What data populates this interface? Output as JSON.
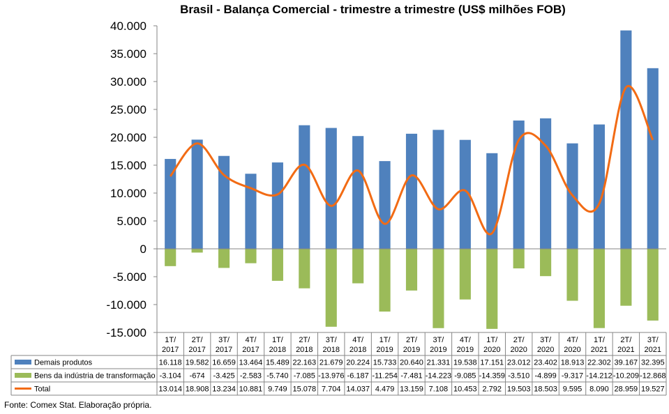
{
  "chart_data": {
    "type": "bar",
    "title": "Brasil - Balança Comercial - trimestre a trimestre (US$ milhões FOB)",
    "ylim": [
      -15000,
      40000
    ],
    "yticks": [
      "40.000",
      "35.000",
      "30.000",
      "25.000",
      "20.000",
      "15.000",
      "10.000",
      "5.000",
      "0",
      "-5.000",
      "-10.000",
      "-15.000"
    ],
    "categories": [
      "1T/ 2017",
      "2T/ 2017",
      "3T/ 2017",
      "4T/ 2017",
      "1T/ 2018",
      "2T/ 2018",
      "3T/ 2018",
      "4T/ 2018",
      "1T/ 2019",
      "2T/ 2019",
      "3T/ 2019",
      "4T/ 2019",
      "1T/ 2020",
      "2T/ 2020",
      "3T/ 2020",
      "4T/ 2020",
      "1T/ 2021",
      "2T/ 2021",
      "3T/ 2021"
    ],
    "grid": false,
    "legend": "data-table",
    "series": [
      {
        "name": "Demais produtos",
        "kind": "bar",
        "color": "#4F81BD",
        "values": [
          16118,
          19582,
          16659,
          13464,
          15489,
          22163,
          21679,
          20224,
          15733,
          20640,
          21331,
          19538,
          17151,
          23012,
          23402,
          18913,
          22302,
          39167,
          32395
        ],
        "labels": [
          "16.118",
          "19.582",
          "16.659",
          "13.464",
          "15.489",
          "22.163",
          "21.679",
          "20.224",
          "15.733",
          "20.640",
          "21.331",
          "19.538",
          "17.151",
          "23.012",
          "23.402",
          "18.913",
          "22.302",
          "39.167",
          "32.395"
        ]
      },
      {
        "name": "Bens da indústria de transformação",
        "kind": "bar",
        "color": "#9BBB59",
        "values": [
          -3104,
          -674,
          -3425,
          -2583,
          -5740,
          -7085,
          -13976,
          -6187,
          -11254,
          -7481,
          -14223,
          -9085,
          -14359,
          -3510,
          -4899,
          -9317,
          -14212,
          -10209,
          -12868
        ],
        "labels": [
          "-3.104",
          "-674",
          "-3.425",
          "-2.583",
          "-5.740",
          "-7.085",
          "-13.976",
          "-6.187",
          "-11.254",
          "-7.481",
          "-14.223",
          "-9.085",
          "-14.359",
          "-3.510",
          "-4.899",
          "-9.317",
          "-14.212",
          "-10.209",
          "-12.868"
        ]
      },
      {
        "name": "Total",
        "kind": "line",
        "color": "#F26B14",
        "values": [
          13014,
          18908,
          13234,
          10881,
          9749,
          15078,
          7704,
          14037,
          4479,
          13159,
          7108,
          10453,
          2792,
          19503,
          18503,
          9595,
          8090,
          28959,
          19527
        ],
        "labels": [
          "13.014",
          "18.908",
          "13.234",
          "10.881",
          "9.749",
          "15.078",
          "7.704",
          "14.037",
          "4.479",
          "13.159",
          "7.108",
          "10.453",
          "2.792",
          "19.503",
          "18.503",
          "9.595",
          "8.090",
          "28.959",
          "19.527"
        ]
      }
    ]
  },
  "footer": {
    "source": "Fonte: Comex Stat. Elaboração própria."
  }
}
